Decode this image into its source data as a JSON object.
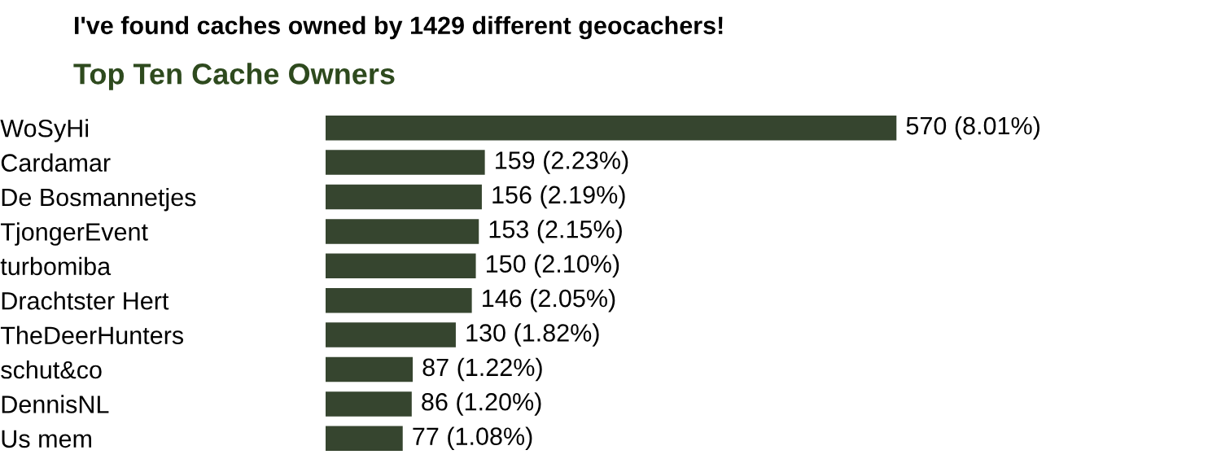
{
  "chart_data": {
    "type": "bar",
    "orientation": "horizontal",
    "title": "I've found caches owned by 1429 different geocachers!",
    "subtitle": "Top Ten Cache Owners",
    "categories": [
      "WoSyHi",
      "Cardamar",
      "De Bosmannetjes",
      "TjongerEvent",
      "turbomiba",
      "Drachtster Hert",
      "TheDeerHunters",
      "schut&co",
      "DennisNL",
      "Us mem"
    ],
    "values": [
      570,
      159,
      156,
      153,
      150,
      146,
      130,
      87,
      86,
      77
    ],
    "value_labels": [
      "570 (8.01%)",
      "159 (2.23%)",
      "156 (2.19%)",
      "153 (2.15%)",
      "150 (2.10%)",
      "146 (2.05%)",
      "130 (1.82%)",
      "87 (1.22%)",
      "86 (1.20%)",
      "77 (1.08%)"
    ],
    "color": "#36452f",
    "grid": false,
    "legend": false
  }
}
